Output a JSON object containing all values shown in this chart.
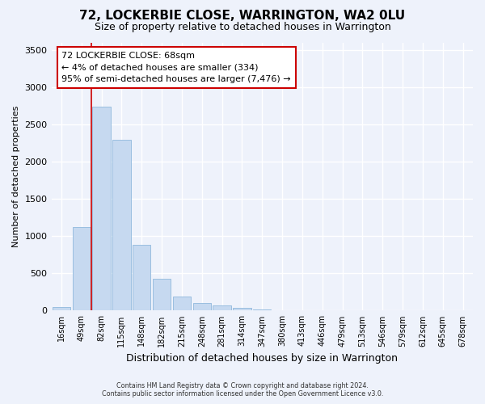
{
  "title": "72, LOCKERBIE CLOSE, WARRINGTON, WA2 0LU",
  "subtitle": "Size of property relative to detached houses in Warrington",
  "xlabel": "Distribution of detached houses by size in Warrington",
  "ylabel": "Number of detached properties",
  "footer_line1": "Contains HM Land Registry data © Crown copyright and database right 2024.",
  "footer_line2": "Contains public sector information licensed under the Open Government Licence v3.0.",
  "annotation_title": "72 LOCKERBIE CLOSE: 68sqm",
  "annotation_line1": "← 4% of detached houses are smaller (334)",
  "annotation_line2": "95% of semi-detached houses are larger (7,476) →",
  "bar_color": "#c6d9f0",
  "bar_edge_color": "#8fb8dc",
  "vline_color": "#cc0000",
  "vline_x": 1.5,
  "annotation_box_color": "#cc0000",
  "background_color": "#eef2fb",
  "plot_bg_color": "#eef2fb",
  "categories": [
    "16sqm",
    "49sqm",
    "82sqm",
    "115sqm",
    "148sqm",
    "182sqm",
    "215sqm",
    "248sqm",
    "281sqm",
    "314sqm",
    "347sqm",
    "380sqm",
    "413sqm",
    "446sqm",
    "479sqm",
    "513sqm",
    "546sqm",
    "579sqm",
    "612sqm",
    "645sqm",
    "678sqm"
  ],
  "values": [
    50,
    1120,
    2740,
    2290,
    880,
    430,
    185,
    100,
    65,
    38,
    18,
    8,
    4,
    2,
    1,
    0,
    0,
    0,
    0,
    0,
    0
  ],
  "ylim": [
    0,
    3600
  ],
  "yticks": [
    0,
    500,
    1000,
    1500,
    2000,
    2500,
    3000,
    3500
  ]
}
